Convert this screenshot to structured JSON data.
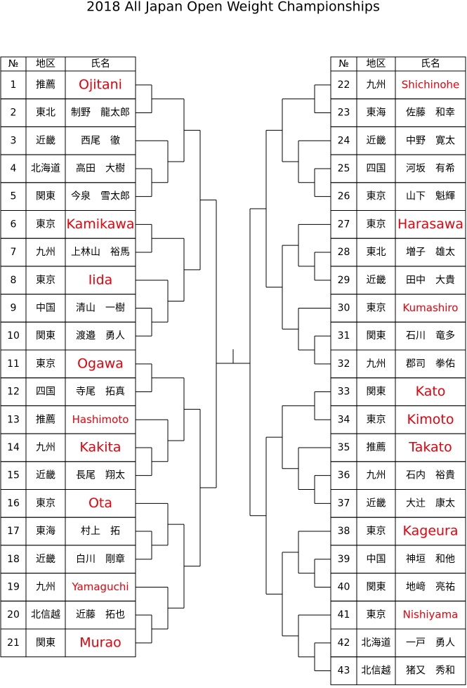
{
  "title": "2018 All Japan Open Weight Championships",
  "left": {
    "header": [
      "№",
      "地区",
      "氏名"
    ],
    "rows": [
      {
        "no": 1,
        "region": "推薦",
        "name": "Ojitani",
        "color": "#e8000b"
      },
      {
        "no": 2,
        "region": "東北",
        "name": "制野　龍太郎",
        "color": "#000000"
      },
      {
        "no": 3,
        "region": "近畿",
        "name": "西尾　徹",
        "color": "#000000"
      },
      {
        "no": 4,
        "region": "北海道",
        "name": "高田　大樹",
        "color": "#000000"
      },
      {
        "no": 5,
        "region": "関東",
        "name": "今泉　雪太郎",
        "color": "#000000"
      },
      {
        "no": 6,
        "region": "東京",
        "name": "Kamikawa",
        "color": "#e8000b"
      },
      {
        "no": 7,
        "region": "九州",
        "name": "上林山　裕馬",
        "color": "#000000"
      },
      {
        "no": 8,
        "region": "東京",
        "name": "Iida",
        "color": "#e8000b"
      },
      {
        "no": 9,
        "region": "中国",
        "name": "清山　一樹",
        "color": "#000000"
      },
      {
        "no": 10,
        "region": "関東",
        "name": "渡邉　勇人",
        "color": "#000000"
      },
      {
        "no": 11,
        "region": "東京",
        "name": "Ogawa",
        "color": "#e8000b"
      },
      {
        "no": 12,
        "region": "四国",
        "name": "寺尾　拓真",
        "color": "#000000"
      },
      {
        "no": 13,
        "region": "推薦",
        "name": "Hashimoto",
        "color": "#e8000b"
      },
      {
        "no": 14,
        "region": "九州",
        "name": "Kakita",
        "color": "#e8000b"
      },
      {
        "no": 15,
        "region": "近畿",
        "name": "長尾　翔太",
        "color": "#000000"
      },
      {
        "no": 16,
        "region": "東京",
        "name": "Ota",
        "color": "#e8000b"
      },
      {
        "no": 17,
        "region": "東海",
        "name": "村上　拓",
        "color": "#000000"
      },
      {
        "no": 18,
        "region": "近畿",
        "name": "白川　剛章",
        "color": "#000000"
      },
      {
        "no": 19,
        "region": "九州",
        "name": "Yamaguchi",
        "color": "#e8000b"
      },
      {
        "no": 20,
        "region": "北信越",
        "name": "近藤　拓也",
        "color": "#000000"
      },
      {
        "no": 21,
        "region": "関東",
        "name": "Murao",
        "color": "#e8000b"
      }
    ]
  },
  "right": {
    "header": [
      "№",
      "地区",
      "氏名"
    ],
    "rows": [
      {
        "no": 22,
        "region": "九州",
        "name": "Shichinohe",
        "color": "#e8000b"
      },
      {
        "no": 23,
        "region": "東海",
        "name": "佐藤　和幸",
        "color": "#000000"
      },
      {
        "no": 24,
        "region": "近畿",
        "name": "中野　寛太",
        "color": "#000000"
      },
      {
        "no": 25,
        "region": "四国",
        "name": "河坂　有希",
        "color": "#000000"
      },
      {
        "no": 26,
        "region": "東京",
        "name": "山下　魁輝",
        "color": "#000000"
      },
      {
        "no": 27,
        "region": "東京",
        "name": "Harasawa",
        "color": "#e8000b"
      },
      {
        "no": 28,
        "region": "東北",
        "name": "増子　雄太",
        "color": "#000000"
      },
      {
        "no": 29,
        "region": "近畿",
        "name": "田中　大貴",
        "color": "#000000"
      },
      {
        "no": 30,
        "region": "東京",
        "name": "Kumashiro",
        "color": "#e8000b"
      },
      {
        "no": 31,
        "region": "関東",
        "name": "石川　竜多",
        "color": "#000000"
      },
      {
        "no": 32,
        "region": "九州",
        "name": "郡司　拳佑",
        "color": "#000000"
      },
      {
        "no": 33,
        "region": "関東",
        "name": "Kato",
        "color": "#e8000b"
      },
      {
        "no": 34,
        "region": "東京",
        "name": "Kimoto",
        "color": "#e8000b"
      },
      {
        "no": 35,
        "region": "推薦",
        "name": "Takato",
        "color": "#e8000b"
      },
      {
        "no": 36,
        "region": "九州",
        "name": "石内　裕貴",
        "color": "#000000"
      },
      {
        "no": 37,
        "region": "近畿",
        "name": "大辻　康太",
        "color": "#000000"
      },
      {
        "no": 38,
        "region": "東京",
        "name": "Kageura",
        "color": "#e8000b"
      },
      {
        "no": 39,
        "region": "中国",
        "name": "神垣　和他",
        "color": "#000000"
      },
      {
        "no": 40,
        "region": "関東",
        "name": "地﨑　亮祐",
        "color": "#000000"
      },
      {
        "no": 41,
        "region": "東京",
        "name": "Nishiyama",
        "color": "#e8000b"
      },
      {
        "no": 42,
        "region": "北海道",
        "name": "一戸　勇人",
        "color": "#000000"
      },
      {
        "no": 43,
        "region": "北信越",
        "name": "猪又　秀和",
        "color": "#000000"
      }
    ]
  }
}
